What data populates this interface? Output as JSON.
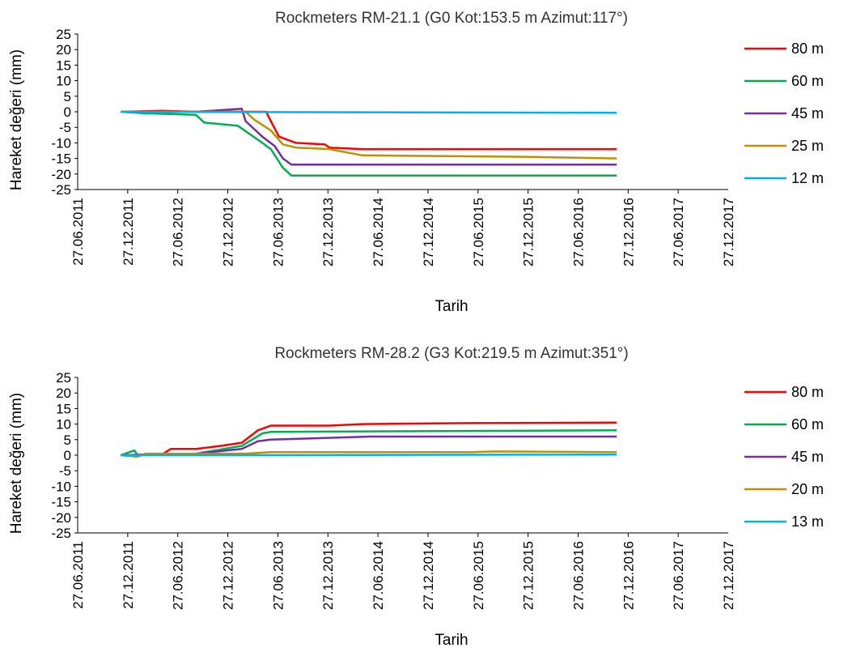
{
  "chart_data": [
    {
      "type": "line",
      "title": "Rockmeters RM-21.1 (G0 Kot:153.5 m Azimut:117°)",
      "xlabel": "Tarih",
      "ylabel": "Hareket değeri (mm)",
      "x_ticks": [
        "27.06.2011",
        "27.12.2011",
        "27.06.2012",
        "27.12.2012",
        "27.06.2013",
        "27.12.2013",
        "27.06.2014",
        "27.12.2014",
        "27.06.2015",
        "27.12.2015",
        "27.06.2016",
        "27.12.2016",
        "27.06.2017",
        "27.12.2017"
      ],
      "y_ticks": [
        "25",
        "20",
        "15",
        "10",
        "5",
        "0",
        "-5",
        "-10",
        "-15",
        "-20",
        "-25"
      ],
      "ylim": [
        -25,
        25
      ],
      "xlim": [
        "2011-06-27",
        "2017-12-27"
      ],
      "legend_position": "right",
      "series": [
        {
          "name": "80 m",
          "color": "#ff0000",
          "points": [
            [
              "2011-12-01",
              0
            ],
            [
              "2012-05-01",
              0.3
            ],
            [
              "2012-09-01",
              0
            ],
            [
              "2013-03-01",
              0
            ],
            [
              "2013-05-15",
              0
            ],
            [
              "2013-06-01",
              -3
            ],
            [
              "2013-07-01",
              -8
            ],
            [
              "2013-09-01",
              -10
            ],
            [
              "2013-12-15",
              -10.5
            ],
            [
              "2014-01-01",
              -11.5
            ],
            [
              "2014-05-01",
              -12
            ],
            [
              "2014-12-01",
              -12
            ],
            [
              "2015-06-01",
              -12
            ],
            [
              "2016-11-15",
              -12
            ]
          ]
        },
        {
          "name": "60 m",
          "color": "#00b050",
          "points": [
            [
              "2011-12-01",
              0
            ],
            [
              "2012-03-01",
              -0.5
            ],
            [
              "2012-09-01",
              -1
            ],
            [
              "2012-10-01",
              -3.5
            ],
            [
              "2013-02-01",
              -4.5
            ],
            [
              "2013-05-01",
              -10
            ],
            [
              "2013-06-01",
              -12
            ],
            [
              "2013-07-15",
              -18
            ],
            [
              "2013-08-15",
              -20.5
            ],
            [
              "2014-01-01",
              -20.5
            ],
            [
              "2014-03-01",
              -20.5
            ],
            [
              "2016-11-15",
              -20.5
            ]
          ]
        },
        {
          "name": "45 m",
          "color": "#7030a0",
          "points": [
            [
              "2011-12-01",
              0
            ],
            [
              "2012-09-01",
              0
            ],
            [
              "2013-02-15",
              1
            ],
            [
              "2013-03-01",
              -3
            ],
            [
              "2013-05-01",
              -8
            ],
            [
              "2013-06-15",
              -11
            ],
            [
              "2013-07-15",
              -15
            ],
            [
              "2013-08-15",
              -17
            ],
            [
              "2016-11-15",
              -17
            ]
          ]
        },
        {
          "name": "25 m",
          "color": "#bf9000",
          "points": [
            [
              "2011-12-01",
              0
            ],
            [
              "2012-09-01",
              0
            ],
            [
              "2013-03-01",
              0
            ],
            [
              "2013-04-01",
              -2.5
            ],
            [
              "2013-06-01",
              -6
            ],
            [
              "2013-07-15",
              -10.5
            ],
            [
              "2013-09-01",
              -11.5
            ],
            [
              "2014-01-01",
              -12
            ],
            [
              "2014-05-01",
              -14
            ],
            [
              "2016-01-01",
              -14.5
            ],
            [
              "2016-11-15",
              -15
            ]
          ]
        },
        {
          "name": "12 m",
          "color": "#00b0f0",
          "points": [
            [
              "2011-12-01",
              0
            ],
            [
              "2016-11-15",
              -0.3
            ]
          ]
        }
      ]
    },
    {
      "type": "line",
      "title": "Rockmeters RM-28.2 (G3 Kot:219.5 m Azimut:351°)",
      "xlabel": "Tarih",
      "ylabel": "Hareket değeri (mm)",
      "x_ticks": [
        "27.06.2011",
        "27.12.2011",
        "27.06.2012",
        "27.12.2012",
        "27.06.2013",
        "27.12.2013",
        "27.06.2014",
        "27.12.2014",
        "27.06.2015",
        "27.12.2015",
        "27.06.2016",
        "27.12.2016",
        "27.06.2017",
        "27.12.2017"
      ],
      "y_ticks": [
        "25",
        "20",
        "15",
        "10",
        "5",
        "0",
        "-5",
        "-10",
        "-15",
        "-20",
        "-25"
      ],
      "ylim": [
        -25,
        25
      ],
      "xlim": [
        "2011-06-27",
        "2017-12-27"
      ],
      "legend_position": "right",
      "series": [
        {
          "name": "80 m",
          "color": "#ff0000",
          "points": [
            [
              "2011-12-01",
              0
            ],
            [
              "2012-05-01",
              0.3
            ],
            [
              "2012-06-01",
              2
            ],
            [
              "2012-09-01",
              2
            ],
            [
              "2012-12-01",
              3
            ],
            [
              "2013-02-15",
              4
            ],
            [
              "2013-04-15",
              8
            ],
            [
              "2013-06-01",
              9.5
            ],
            [
              "2014-01-01",
              9.5
            ],
            [
              "2014-05-01",
              10
            ],
            [
              "2015-06-01",
              10.3
            ],
            [
              "2016-11-15",
              10.5
            ]
          ]
        },
        {
          "name": "60 m",
          "color": "#00b050",
          "points": [
            [
              "2011-12-01",
              0
            ],
            [
              "2012-01-20",
              1.5
            ],
            [
              "2012-02-01",
              0
            ],
            [
              "2012-09-01",
              0.5
            ],
            [
              "2013-02-15",
              3
            ],
            [
              "2013-05-01",
              7
            ],
            [
              "2013-06-01",
              7.5
            ],
            [
              "2016-11-15",
              8
            ]
          ]
        },
        {
          "name": "45 m",
          "color": "#7030a0",
          "points": [
            [
              "2011-12-01",
              0
            ],
            [
              "2012-09-01",
              0.5
            ],
            [
              "2013-02-15",
              2
            ],
            [
              "2013-04-15",
              4.5
            ],
            [
              "2013-06-01",
              5
            ],
            [
              "2014-06-01",
              6
            ],
            [
              "2016-11-15",
              6
            ]
          ]
        },
        {
          "name": "20 m",
          "color": "#bf9000",
          "points": [
            [
              "2011-12-01",
              0
            ],
            [
              "2012-02-01",
              -0.5
            ],
            [
              "2012-03-01",
              0.5
            ],
            [
              "2013-03-01",
              0.5
            ],
            [
              "2013-06-01",
              1
            ],
            [
              "2015-06-01",
              1
            ],
            [
              "2015-09-01",
              1.2
            ],
            [
              "2016-11-15",
              1
            ]
          ]
        },
        {
          "name": "13 m",
          "color": "#00b0f0",
          "points": [
            [
              "2011-12-01",
              0
            ],
            [
              "2013-03-01",
              0
            ],
            [
              "2016-11-15",
              0.2
            ]
          ]
        }
      ]
    }
  ]
}
